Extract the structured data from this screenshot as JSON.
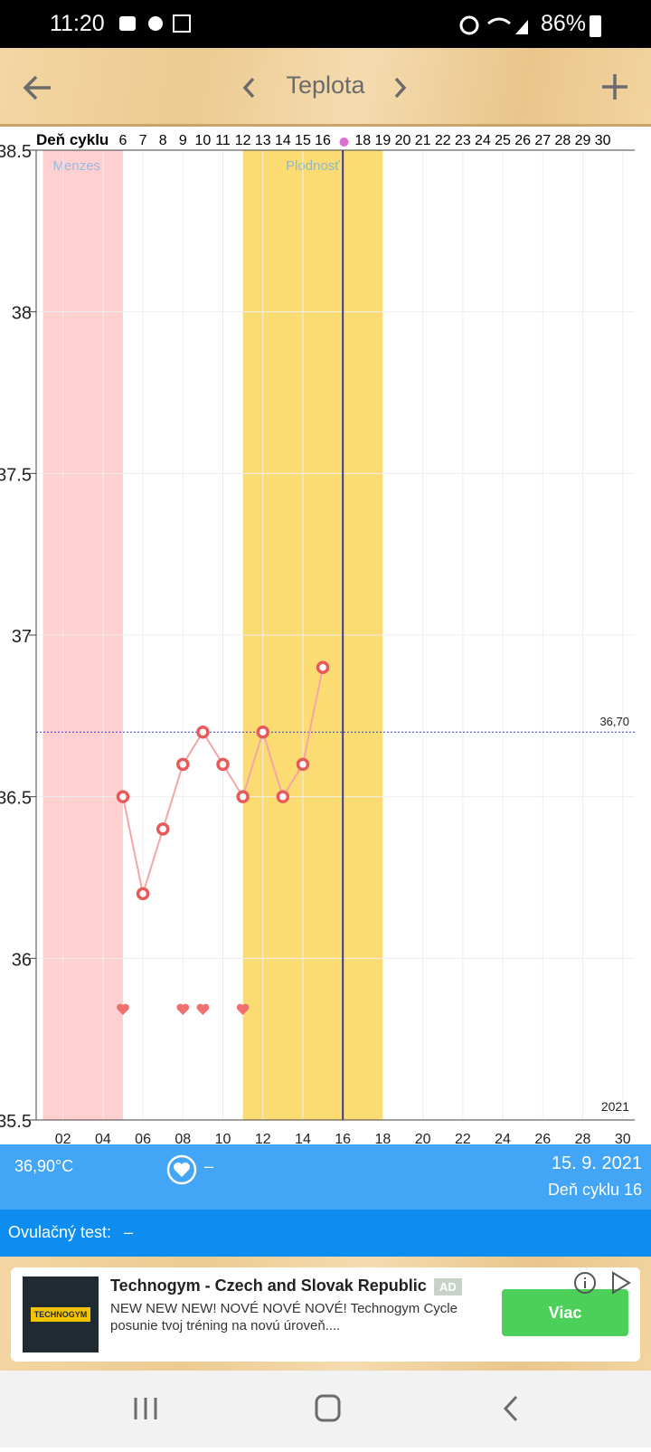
{
  "status_bar": {
    "time": "11:20",
    "battery": "86%"
  },
  "header": {
    "title": "Teplota"
  },
  "chart_data": {
    "type": "line",
    "x_label": "Deň cyklu",
    "cycle_days": [
      6,
      7,
      8,
      9,
      10,
      11,
      12,
      13,
      14,
      15,
      16,
      18,
      19,
      20,
      21,
      22,
      23,
      24,
      25,
      26,
      27,
      28,
      29,
      30
    ],
    "x": [
      5,
      6,
      7,
      8,
      9,
      10,
      11,
      12,
      13,
      14,
      15
    ],
    "values": [
      36.5,
      36.2,
      36.4,
      36.6,
      36.7,
      36.6,
      36.5,
      36.7,
      36.5,
      36.6,
      36.9
    ],
    "color": "#e85a5a",
    "line_color": "#f4a6a6",
    "xlim": [
      0.66,
      30.6
    ],
    "ylim": [
      35.5,
      38.5
    ],
    "yticks": [
      35.5,
      36,
      36.5,
      37,
      37.5,
      38,
      38.5
    ],
    "xticks": [
      {
        "value": 2,
        "label": "02"
      },
      {
        "value": 4,
        "label": "04"
      },
      {
        "value": 6,
        "label": "06"
      },
      {
        "value": 8,
        "label": "08"
      },
      {
        "value": 10,
        "label": "10"
      },
      {
        "value": 12,
        "label": "12"
      },
      {
        "value": 14,
        "label": "14"
      },
      {
        "value": 16,
        "label": "16"
      },
      {
        "value": 18,
        "label": "18"
      },
      {
        "value": 20,
        "label": "20"
      },
      {
        "value": 22,
        "label": "22"
      },
      {
        "value": 24,
        "label": "24"
      },
      {
        "value": 26,
        "label": "26"
      },
      {
        "value": 28,
        "label": "28"
      },
      {
        "value": 30,
        "label": "30"
      }
    ],
    "bands": [
      {
        "name": "Menzes",
        "start": 1,
        "end": 5,
        "color": "#ffd0d0",
        "label_color": "#9ab8e0"
      },
      {
        "name": "Plodnosť",
        "start": 11,
        "end": 18,
        "color": "#fbdc72",
        "label_color": "#8fb6c8"
      }
    ],
    "today": 16,
    "today_color": "#3b3b8f",
    "reference": {
      "value": 36.7,
      "label": "36,70"
    },
    "hearts": [
      5,
      8,
      9,
      11
    ],
    "year": "2021",
    "grid": true
  },
  "summary": {
    "temperature": "36,90°C",
    "intercourse": "–",
    "date": "15. 9. 2021",
    "cycle_day": "Deň cyklu 16"
  },
  "ovulation": {
    "label": "Ovulačný test:",
    "value": "–"
  },
  "ad": {
    "logo": "TECHNOGYM",
    "title": "Technogym - Czech and Slovak Republic",
    "badge": "AD",
    "text": "NEW NEW NEW! NOVÉ NOVÉ NOVÉ! Technogym Cycle posunie tvoj tréning na novú úroveň....",
    "button": "Viac"
  }
}
